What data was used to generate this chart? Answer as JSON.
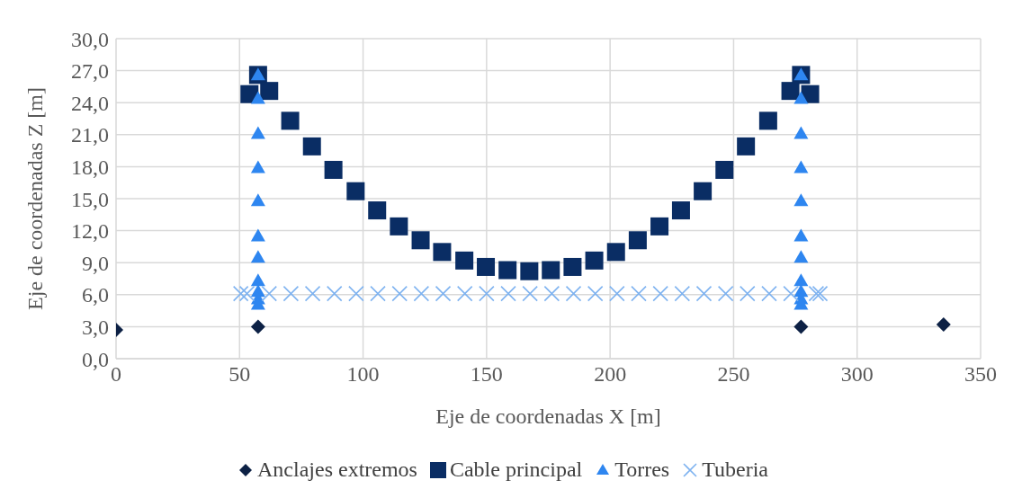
{
  "chart_data": {
    "type": "scatter",
    "xlabel": "Eje de coordenadas X [m]",
    "ylabel": "Eje de coordenadas Z [m]",
    "xlim": [
      0,
      350
    ],
    "xticks": [
      0,
      50,
      100,
      150,
      200,
      250,
      300,
      350
    ],
    "ylim": [
      0,
      30
    ],
    "yticks": [
      {
        "value": 0,
        "label": "0,0"
      },
      {
        "value": 3,
        "label": "3,0"
      },
      {
        "value": 6,
        "label": "6,0"
      },
      {
        "value": 9,
        "label": "9,0"
      },
      {
        "value": 12,
        "label": "12,0"
      },
      {
        "value": 15,
        "label": "15,0"
      },
      {
        "value": 18,
        "label": "18,0"
      },
      {
        "value": 21,
        "label": "21,0"
      },
      {
        "value": 24,
        "label": "24,0"
      },
      {
        "value": 27,
        "label": "27,0"
      },
      {
        "value": 30,
        "label": "30,0"
      }
    ],
    "grid": true,
    "legend": "bottom",
    "series": [
      {
        "name": "Anclajes extremos",
        "color": "#0d2145",
        "marker": "diamond",
        "x": [
          0,
          57.5,
          277.3,
          335
        ],
        "values": [
          2.7,
          3.0,
          3.0,
          3.2
        ]
      },
      {
        "name": "Cable principal",
        "color": "#0a2d64",
        "marker": "square",
        "x": [
          54,
          57.5,
          62,
          70.5,
          79.3,
          88,
          97,
          105.7,
          114.5,
          123.3,
          132,
          141,
          149.7,
          158.5,
          167.3,
          176,
          184.8,
          193.6,
          202.4,
          211.2,
          220,
          228.7,
          237.5,
          246.3,
          255,
          264,
          273,
          277.3,
          281
        ],
        "values": [
          24.8,
          26.6,
          25.1,
          22.3,
          19.9,
          17.7,
          15.7,
          13.9,
          12.4,
          11.1,
          10.0,
          9.2,
          8.6,
          8.3,
          8.2,
          8.3,
          8.6,
          9.2,
          10.0,
          11.1,
          12.4,
          13.9,
          15.7,
          17.7,
          19.9,
          22.3,
          25.1,
          26.6,
          24.8
        ]
      },
      {
        "name": "Torres",
        "color": "#2e86f0",
        "marker": "triangle",
        "x": [
          57.5,
          57.5,
          57.5,
          57.5,
          57.5,
          57.5,
          57.5,
          57.5,
          57.5,
          57.5,
          57.5,
          277.3,
          277.3,
          277.3,
          277.3,
          277.3,
          277.3,
          277.3,
          277.3,
          277.3,
          277.3,
          277.3
        ],
        "values": [
          26.6,
          24.4,
          21.1,
          17.9,
          14.8,
          11.5,
          9.5,
          7.3,
          6.3,
          5.6,
          5.1,
          26.6,
          24.4,
          21.1,
          17.9,
          14.8,
          11.5,
          9.5,
          7.3,
          6.3,
          5.6,
          5.1
        ]
      },
      {
        "name": "Tuberia",
        "color": "#7fb3f0",
        "marker": "cross",
        "x": [
          50.5,
          53,
          62,
          70.8,
          79.6,
          88.4,
          97.2,
          106,
          114.8,
          123.6,
          132.4,
          141.2,
          150,
          158.8,
          167.6,
          176.4,
          185.2,
          194,
          202.8,
          211.6,
          220.4,
          229.2,
          238,
          246.8,
          255.6,
          264.4,
          273.2,
          283.5,
          285
        ],
        "values": [
          6.1,
          6.1,
          6.1,
          6.1,
          6.1,
          6.1,
          6.1,
          6.1,
          6.1,
          6.1,
          6.1,
          6.1,
          6.1,
          6.1,
          6.1,
          6.1,
          6.1,
          6.1,
          6.1,
          6.1,
          6.1,
          6.1,
          6.1,
          6.1,
          6.1,
          6.1,
          6.1,
          6.1,
          6.1
        ]
      }
    ]
  }
}
